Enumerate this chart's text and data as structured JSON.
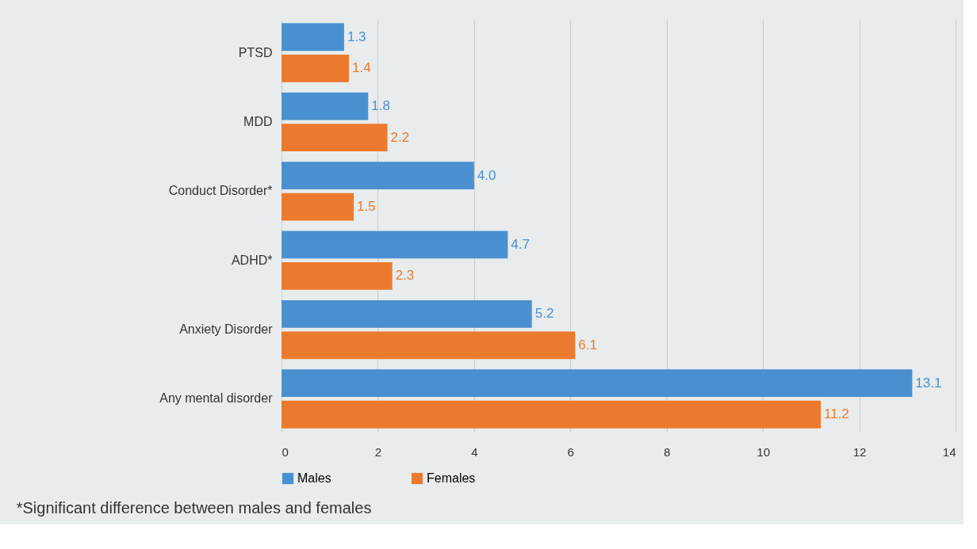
{
  "chart_data": {
    "type": "bar",
    "orientation": "horizontal",
    "categories": [
      "PTSD",
      "MDD",
      "Conduct Disorder*",
      "ADHD*",
      "Anxiety Disorder",
      "Any mental disorder"
    ],
    "series": [
      {
        "name": "Males",
        "color": "#4a90d0",
        "values": [
          1.3,
          1.8,
          4.0,
          4.7,
          5.2,
          13.1
        ],
        "value_labels": [
          "1.3",
          "1.8",
          "4.0",
          "4.7",
          "5.2",
          "13.1"
        ]
      },
      {
        "name": "Females",
        "color": "#ec7a2e",
        "values": [
          1.4,
          2.2,
          1.5,
          2.3,
          6.1,
          11.2
        ],
        "value_labels": [
          "1.4",
          "2.2",
          "1.5",
          "2.3",
          "6.1",
          "11.2"
        ]
      }
    ],
    "xlim": [
      0,
      14
    ],
    "xticks": [
      0,
      2,
      4,
      6,
      8,
      10,
      12,
      14
    ],
    "grid": "x",
    "legend": "bottom",
    "annotations": [
      "*Significant difference between males and females"
    ]
  }
}
